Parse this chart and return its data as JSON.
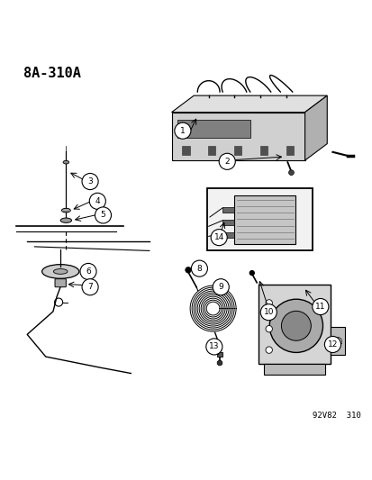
{
  "title": "8A-310A",
  "footer": "92V82  310",
  "background_color": "#ffffff",
  "text_color": "#000000",
  "fig_width": 4.14,
  "fig_height": 5.33,
  "dpi": 100
}
